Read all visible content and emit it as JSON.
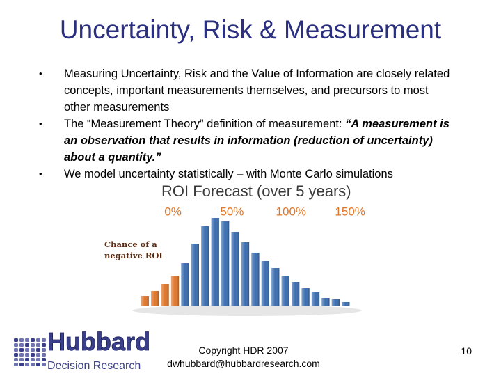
{
  "title": "Uncertainty, Risk & Measurement",
  "bullets": [
    {
      "text": "Measuring Uncertainty, Risk and the Value of Information are closely related concepts, important measurements themselves, and precursors to most other measurements"
    },
    {
      "text": "The “Measurement Theory” definition of measurement: ",
      "emphasis": "“A measurement is an observation that results in information (reduction of uncertainty) about a quantity.”"
    },
    {
      "text": "We model uncertainty statistically – with Monte Carlo simulations"
    }
  ],
  "chart_data": {
    "type": "histogram",
    "title": "ROI Forecast (over 5 years)",
    "annotation": "Chance of a negative ROI",
    "bins": [
      -28,
      -19.5,
      -11,
      -2.5,
      6,
      14.5,
      23,
      31.5,
      40,
      48.5,
      57,
      65.5,
      74,
      82.5,
      91,
      99.5,
      108,
      116.5,
      125,
      133.5,
      142,
      150.5
    ],
    "values": [
      15,
      22,
      32,
      44,
      62,
      90,
      115,
      127,
      122,
      107,
      92,
      77,
      65,
      55,
      44,
      35,
      26,
      20,
      12,
      10,
      6
    ],
    "colors": [
      "#e0762a",
      "#e0762a",
      "#e0762a",
      "#e0762a",
      "#3a6db0",
      "#3a6db0",
      "#3a6db0",
      "#3a6db0",
      "#3a6db0",
      "#3a6db0",
      "#3a6db0",
      "#3a6db0",
      "#3a6db0",
      "#3a6db0",
      "#3a6db0",
      "#3a6db0",
      "#3a6db0",
      "#3a6db0",
      "#3a6db0",
      "#3a6db0",
      "#3a6db0"
    ],
    "xlim": [
      -28,
      150.5
    ],
    "xticks": [
      {
        "value": 0,
        "label": "0%"
      },
      {
        "value": 50,
        "label": "50%"
      },
      {
        "value": 100,
        "label": "100%"
      },
      {
        "value": 150,
        "label": "150%"
      }
    ]
  },
  "footer": {
    "copyright": "Copyright HDR 2007",
    "email": "dwhubbard@hubbardresearch.com",
    "page": "10",
    "logo": {
      "name": "Hubbard",
      "tagline": "Decision Research"
    }
  }
}
